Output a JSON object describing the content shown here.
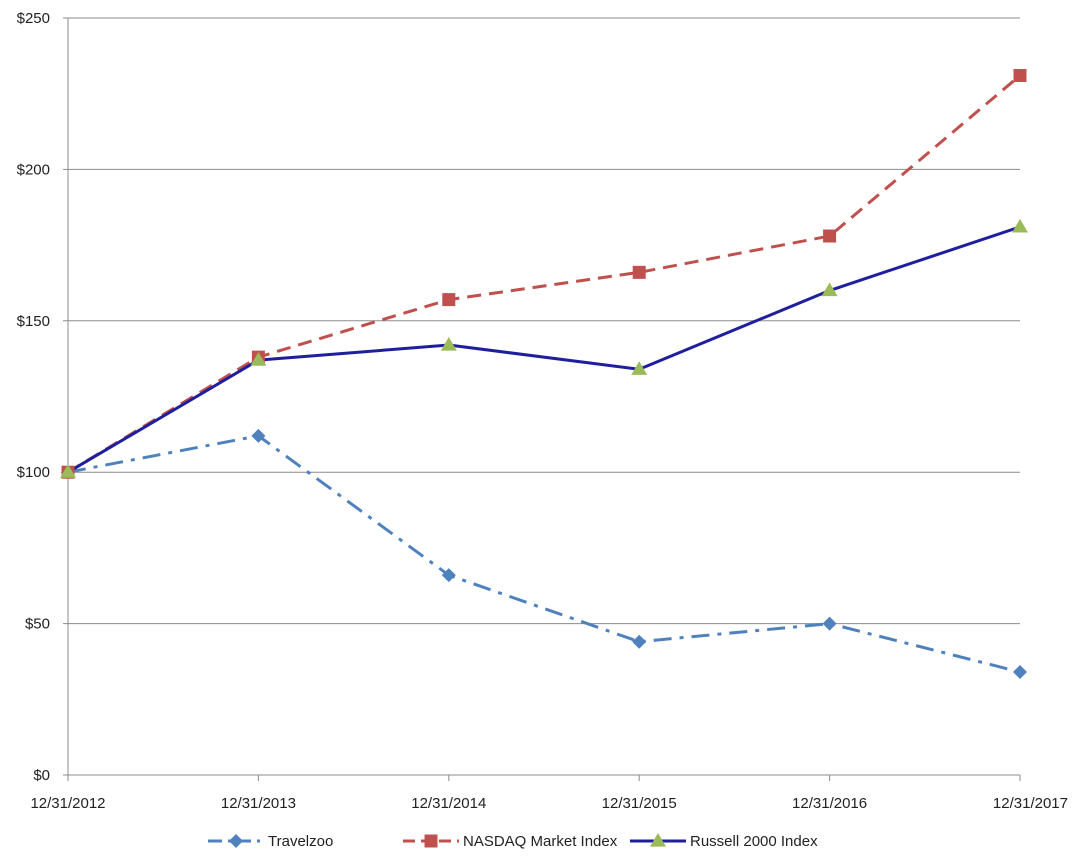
{
  "chart_data": {
    "type": "line",
    "title": "",
    "xlabel": "",
    "ylabel": "",
    "categories": [
      "12/31/2012",
      "12/31/2013",
      "12/31/2014",
      "12/31/2015",
      "12/31/2016",
      "12/31/2017"
    ],
    "ylim": [
      0,
      250
    ],
    "y_ticks": [
      0,
      50,
      100,
      150,
      200,
      250
    ],
    "y_tick_labels": [
      "$0",
      "$50",
      "$100",
      "$150",
      "$200",
      "$250"
    ],
    "grid": "horizontal",
    "legend_position": "bottom",
    "series": [
      {
        "name": "Travelzoo",
        "values": [
          100,
          112,
          66,
          44,
          50,
          34
        ],
        "color": "#4f81bd",
        "line_style": "dash-dot",
        "marker": "diamond"
      },
      {
        "name": "NASDAQ Market Index",
        "values": [
          100,
          138,
          157,
          166,
          178,
          231
        ],
        "color": "#c0504d",
        "line_style": "dashed",
        "marker": "square"
      },
      {
        "name": "Russell 2000 Index",
        "values": [
          100,
          137,
          142,
          134,
          160,
          181
        ],
        "color": "#1f1f9e",
        "line_style": "solid",
        "marker": "triangle",
        "marker_color": "#9bbb59"
      }
    ]
  }
}
